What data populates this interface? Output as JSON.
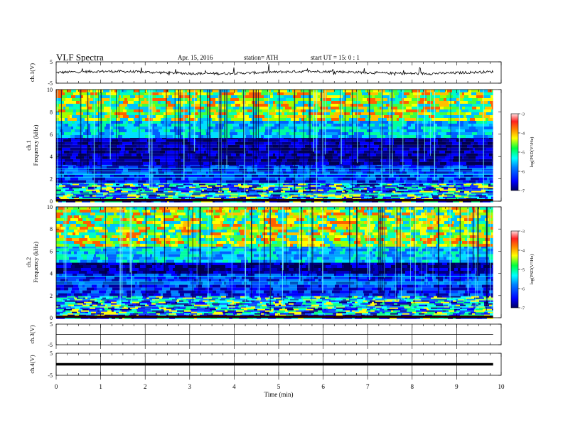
{
  "header": {
    "title": "VLF  Spectra",
    "date": "Apr. 15, 2016",
    "station": "station= ATH",
    "start": "start  UT =    15: 0  : 1"
  },
  "chart_data": [
    {
      "id": "ch1-waveform",
      "type": "line",
      "ylabel": "ch.1(V)",
      "ylim": [
        -5,
        5
      ],
      "yticks": [
        5,
        -5
      ],
      "xlim": [
        0,
        10
      ],
      "x_extent": [
        0,
        9.82
      ],
      "baseline": 0,
      "note_shape": "noisy trace near zero with small spikes"
    },
    {
      "id": "ch1-spectrogram",
      "type": "heatmap",
      "ylabel": "ch.1\nFrequency  (kHz)",
      "ylim": [
        0,
        10
      ],
      "yticks": [
        0,
        2,
        4,
        6,
        8,
        10
      ],
      "xlim": [
        0,
        10
      ],
      "x_extent": [
        0,
        9.82
      ],
      "frequency_profile_khz": [
        {
          "f": [
            0,
            1.8
          ],
          "level": "banded"
        },
        {
          "f": [
            1.8,
            3.4
          ],
          "level": "low"
        },
        {
          "f": [
            3.4,
            5.8
          ],
          "level": "lowest"
        },
        {
          "f": [
            5.8,
            7.2
          ],
          "level": "mid"
        },
        {
          "f": [
            7.2,
            10
          ],
          "level": "high"
        }
      ],
      "colorbar": {
        "label": "log(PSD(V²/Hz)",
        "min": -7,
        "max": -3,
        "ticks": [
          -3,
          -4,
          -5,
          -6,
          -7
        ]
      }
    },
    {
      "id": "ch2-spectrogram",
      "type": "heatmap",
      "ylabel": "ch.2\nFrequency  (kHz)",
      "ylim": [
        0,
        10
      ],
      "yticks": [
        0,
        2,
        4,
        6,
        8,
        10
      ],
      "xlim": [
        0,
        10
      ],
      "x_extent": [
        0,
        9.82
      ],
      "frequency_profile_khz": [
        {
          "f": [
            0,
            2.2
          ],
          "level": "banded"
        },
        {
          "f": [
            2.2,
            4.0
          ],
          "level": "low"
        },
        {
          "f": [
            4.0,
            5.0
          ],
          "level": "lowest"
        },
        {
          "f": [
            5.0,
            6.5
          ],
          "level": "mid"
        },
        {
          "f": [
            6.5,
            10
          ],
          "level": "high"
        }
      ],
      "colorbar": {
        "label": "log(PSD(V²/Hz)",
        "min": -7,
        "max": -3,
        "ticks": [
          -3,
          -4,
          -5,
          -6,
          -7
        ]
      }
    },
    {
      "id": "ch3-waveform",
      "type": "line",
      "ylabel": "ch.3(V)",
      "ylim": [
        -5,
        5
      ],
      "yticks": [
        5,
        -5
      ],
      "xlim": [
        0,
        10
      ],
      "x_extent": [
        0,
        9.82
      ],
      "baseline": 0,
      "note_shape": "flat line"
    },
    {
      "id": "ch4-waveform",
      "type": "line",
      "ylabel": "ch.4(V)",
      "ylim": [
        -5,
        5
      ],
      "yticks": [
        5,
        -5
      ],
      "xlim": [
        0,
        10
      ],
      "x_extent": [
        0,
        9.82
      ],
      "baseline": 0,
      "note_shape": "thick flat line"
    }
  ],
  "xaxis": {
    "label": "Time  (min)",
    "ticks": [
      0,
      1,
      2,
      3,
      4,
      5,
      6,
      7,
      8,
      9,
      10
    ]
  },
  "colors": {
    "colormap": [
      "#000080",
      "#0000ff",
      "#0080ff",
      "#00ffff",
      "#00ff40",
      "#ffff00",
      "#ff8000",
      "#ff0000",
      "#ffffff"
    ],
    "axes": "#000000",
    "trace": "#000000"
  }
}
